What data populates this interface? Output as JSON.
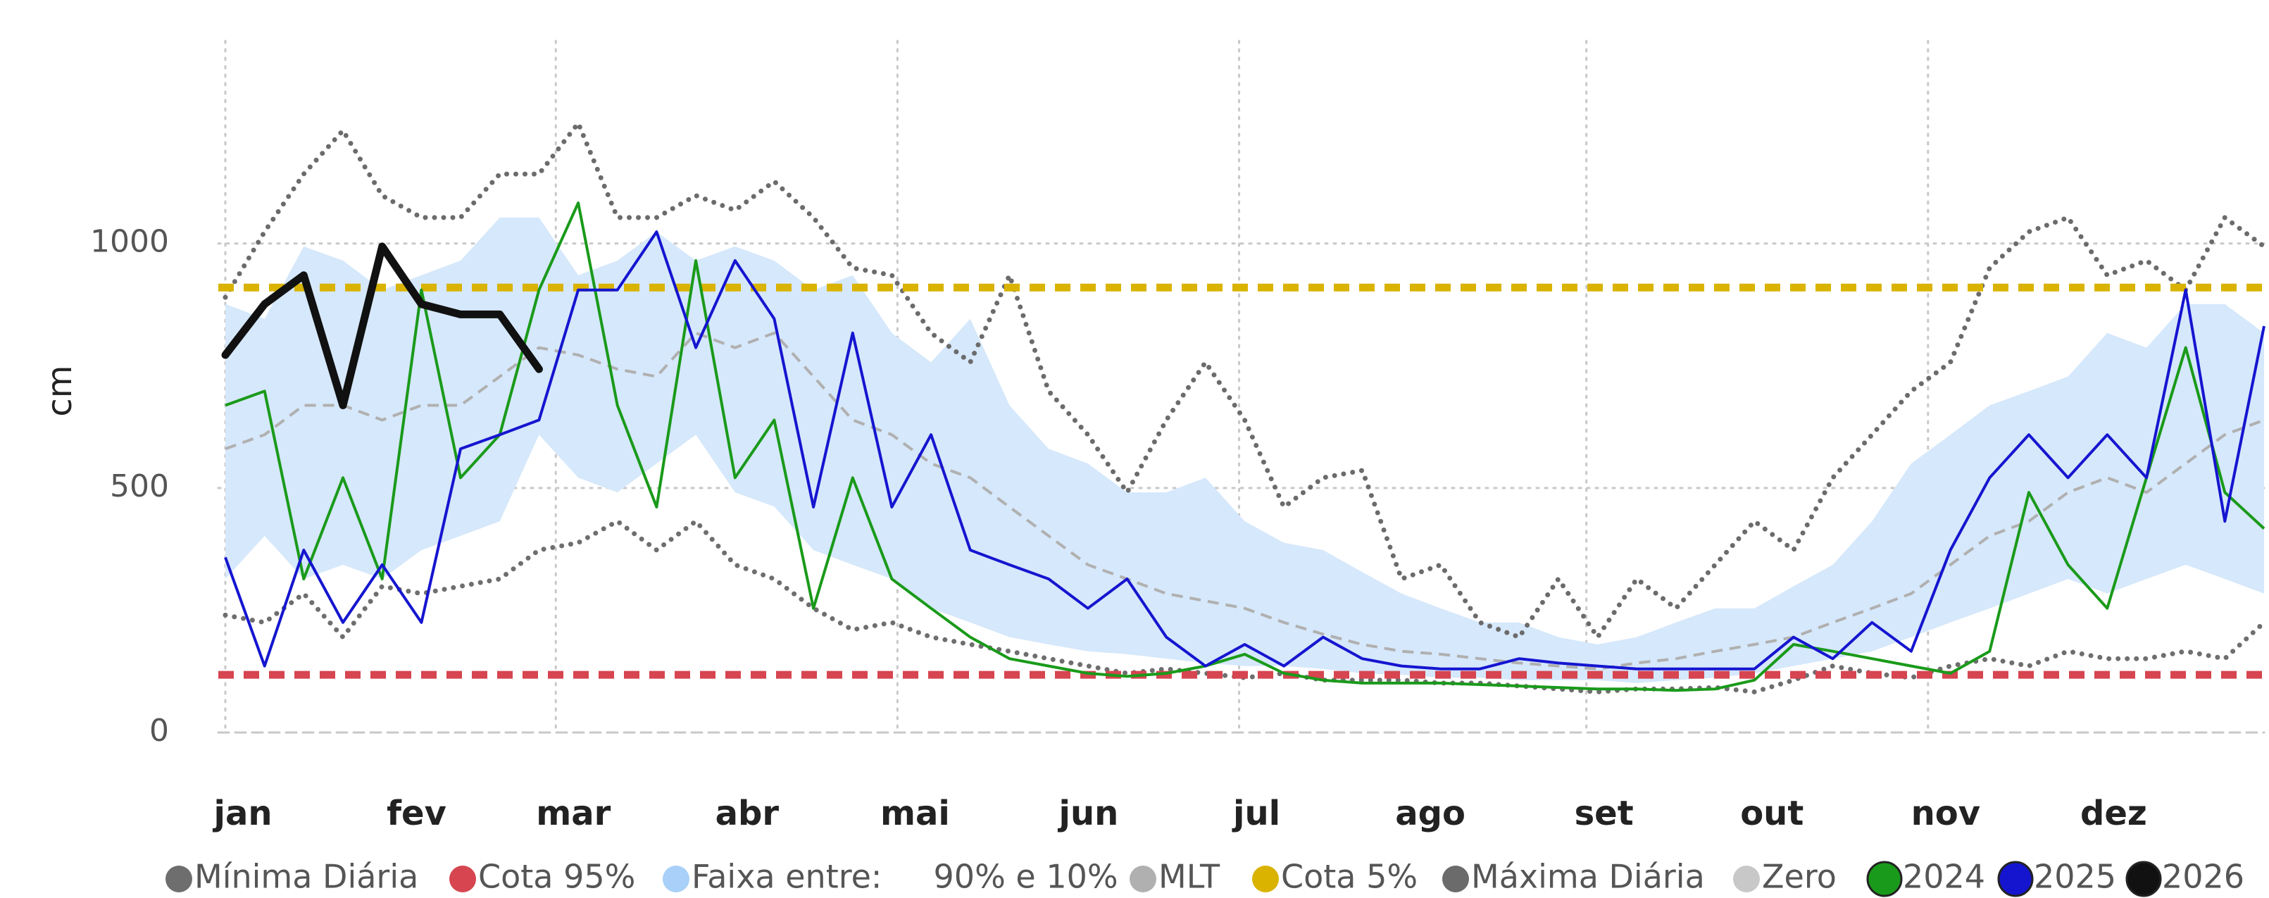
{
  "chart_data": {
    "type": "line",
    "y_label": "cm",
    "xlim": [
      1,
      365
    ],
    "ylim": [
      0,
      1400
    ],
    "yticks": [
      0,
      500,
      1000
    ],
    "xticks": [
      {
        "value": 1,
        "label": "jan"
      },
      {
        "value": 32,
        "label": "fev"
      },
      {
        "value": 60,
        "label": "mar"
      },
      {
        "value": 91,
        "label": "abr"
      },
      {
        "value": 121,
        "label": "mai"
      },
      {
        "value": 152,
        "label": "jun"
      },
      {
        "value": 182,
        "label": "jul"
      },
      {
        "value": 213,
        "label": "ago"
      },
      {
        "value": 244,
        "label": "set"
      },
      {
        "value": 274,
        "label": "out"
      },
      {
        "value": 305,
        "label": "nov"
      },
      {
        "value": 335,
        "label": "dez"
      }
    ],
    "grid": true,
    "x_grid_step": 2,
    "x": [
      1,
      8,
      15,
      22,
      29,
      36,
      43,
      50,
      57,
      64,
      71,
      78,
      85,
      92,
      99,
      106,
      113,
      120,
      127,
      134,
      141,
      148,
      155,
      162,
      169,
      176,
      183,
      190,
      197,
      204,
      211,
      218,
      225,
      232,
      239,
      246,
      253,
      260,
      267,
      274,
      281,
      288,
      295,
      302,
      309,
      316,
      323,
      330,
      337,
      344,
      351,
      358,
      365
    ],
    "series": [
      {
        "name": "Mínima Diária",
        "color": "#6e6e6e",
        "style": "dotted",
        "values": [
          240,
          225,
          284,
          195,
          299,
          284,
          299,
          314,
          373,
          388,
          432,
          373,
          432,
          343,
          314,
          254,
          210,
          225,
          195,
          180,
          166,
          151,
          136,
          121,
          130,
          121,
          112,
          121,
          107,
          107,
          107,
          101,
          101,
          95,
          89,
          83,
          89,
          89,
          92,
          83,
          107,
          136,
          121,
          112,
          136,
          151,
          136,
          166,
          151,
          151,
          166,
          151,
          225
        ]
      },
      {
        "name": "Cota 95%",
        "color": "#d64550",
        "style": "dashed",
        "value": 118
      },
      {
        "name": "Faixa entre:     90% e 10%",
        "color": "#d6e8fb",
        "style": "band",
        "upper": [
          876,
          846,
          994,
          965,
          905,
          935,
          965,
          1053,
          1053,
          935,
          965,
          1024,
          965,
          994,
          965,
          905,
          935,
          817,
          757,
          846,
          669,
          580,
          550,
          491,
          491,
          521,
          432,
          388,
          373,
          328,
          284,
          254,
          225,
          225,
          195,
          180,
          195,
          225,
          254,
          254,
          299,
          343,
          432,
          550,
          609,
          669,
          698,
          728,
          817,
          787,
          876,
          876,
          817
        ],
        "lower": [
          314,
          402,
          314,
          343,
          314,
          373,
          402,
          432,
          609,
          521,
          491,
          550,
          609,
          491,
          462,
          373,
          343,
          314,
          254,
          225,
          195,
          180,
          166,
          160,
          151,
          142,
          136,
          136,
          130,
          121,
          118,
          112,
          112,
          107,
          107,
          107,
          101,
          107,
          112,
          121,
          136,
          151,
          166,
          195,
          225,
          254,
          284,
          314,
          284,
          314,
          343,
          314,
          284
        ]
      },
      {
        "name": "MLT",
        "color": "#b0b0b0",
        "style": "mlt",
        "values": [
          580,
          609,
          669,
          669,
          639,
          669,
          669,
          728,
          787,
          772,
          743,
          728,
          817,
          787,
          817,
          728,
          639,
          609,
          550,
          521,
          461,
          402,
          343,
          314,
          284,
          269,
          254,
          225,
          201,
          180,
          166,
          160,
          151,
          142,
          136,
          130,
          142,
          151,
          166,
          180,
          195,
          225,
          254,
          284,
          343,
          402,
          432,
          491,
          521,
          491,
          550,
          609,
          639
        ]
      },
      {
        "name": "Cota 5%",
        "color": "#d9b300",
        "style": "dashed",
        "value": 910
      },
      {
        "name": "Máxima Diária",
        "color": "#6b6b6b",
        "style": "dotted",
        "values": [
          890,
          1024,
          1142,
          1231,
          1098,
          1053,
          1053,
          1142,
          1142,
          1246,
          1053,
          1053,
          1098,
          1068,
          1127,
          1053,
          950,
          935,
          817,
          757,
          935,
          698,
          609,
          491,
          639,
          757,
          639,
          461,
          521,
          536,
          314,
          343,
          225,
          195,
          314,
          195,
          314,
          254,
          343,
          432,
          373,
          521,
          609,
          698,
          757,
          950,
          1024,
          1053,
          935,
          965,
          905,
          1053,
          994
        ]
      },
      {
        "name": "Zero",
        "color": "#c8c8c8",
        "style": "zero",
        "value": 0
      },
      {
        "name": "2024",
        "color": "#1a9a1a",
        "style": "solid",
        "values": [
          669,
          698,
          314,
          521,
          314,
          905,
          521,
          609,
          905,
          1083,
          669,
          461,
          965,
          521,
          639,
          254,
          521,
          314,
          254,
          195,
          151,
          136,
          121,
          115,
          121,
          136,
          160,
          121,
          107,
          101,
          101,
          101,
          98,
          95,
          92,
          89,
          89,
          86,
          89,
          107,
          180,
          166,
          151,
          136,
          121,
          166,
          491,
          343,
          254,
          521,
          787,
          491,
          417
        ]
      },
      {
        "name": "2025",
        "color": "#1515d0",
        "style": "solid",
        "values": [
          358,
          136,
          373,
          225,
          343,
          225,
          580,
          609,
          639,
          905,
          905,
          1024,
          787,
          965,
          846,
          461,
          817,
          461,
          609,
          373,
          343,
          314,
          254,
          314,
          195,
          136,
          180,
          136,
          195,
          151,
          136,
          130,
          130,
          151,
          142,
          136,
          130,
          130,
          130,
          130,
          195,
          151,
          225,
          166,
          373,
          521,
          609,
          521,
          609,
          521,
          905,
          432,
          831
        ]
      },
      {
        "name": "2026",
        "color": "#111111",
        "style": "bold",
        "values": [
          772,
          876,
          935,
          669,
          994,
          876,
          855,
          855,
          743,
          null,
          null,
          null,
          null,
          null,
          null,
          null,
          null,
          null,
          null,
          null,
          null,
          null,
          null,
          null,
          null,
          null,
          null,
          null,
          null,
          null,
          null,
          null,
          null,
          null,
          null,
          null,
          null,
          null,
          null,
          null,
          null,
          null,
          null,
          null,
          null,
          null,
          null,
          null,
          null,
          null,
          null,
          null,
          null
        ]
      }
    ]
  }
}
